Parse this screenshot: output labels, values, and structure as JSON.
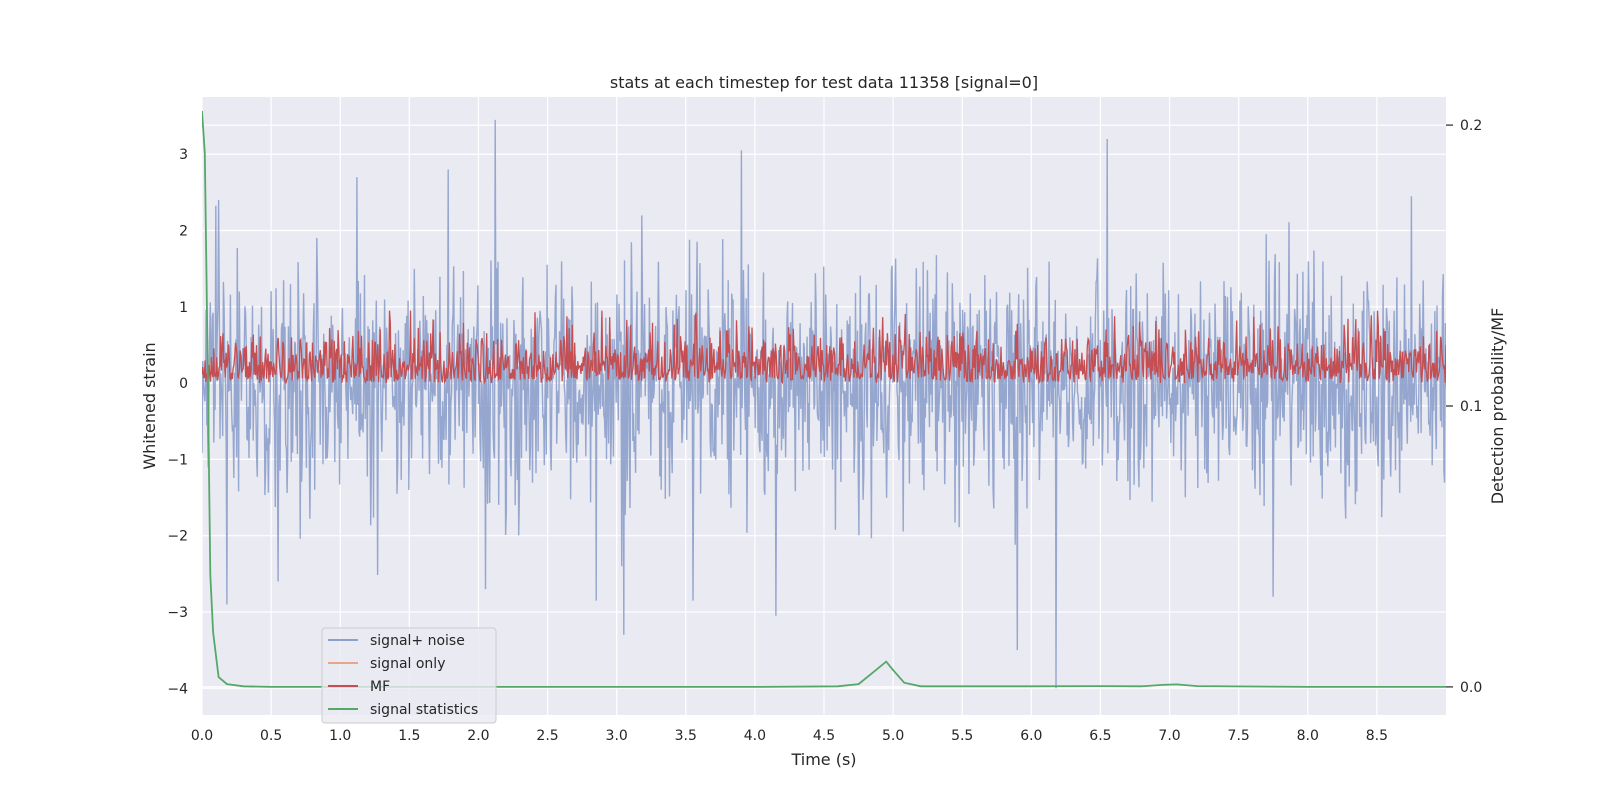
{
  "chart_data": {
    "type": "line",
    "title": "stats at each timestep for test data 11358 [signal=0]",
    "xlabel": "Time (s)",
    "ylabel_left": "Whitened strain",
    "ylabel_right": "Detection probability/MF",
    "xlim": [
      0.0,
      9.0
    ],
    "ylim_left": [
      -4.35,
      3.75
    ],
    "ylim_right": [
      -0.01,
      0.21
    ],
    "x_ticks": [
      "0.0",
      "0.5",
      "1.0",
      "1.5",
      "2.0",
      "2.5",
      "3.0",
      "3.5",
      "4.0",
      "4.5",
      "5.0",
      "5.5",
      "6.0",
      "6.5",
      "7.0",
      "7.5",
      "8.0",
      "8.5"
    ],
    "y_ticks_left": [
      "3",
      "2",
      "1",
      "0",
      "−1",
      "−2",
      "−3",
      "−4"
    ],
    "y_ticks_left_values": [
      3,
      2,
      1,
      0,
      -1,
      -2,
      -3,
      -4
    ],
    "y_ticks_right": [
      "0.2",
      "0.1",
      "0.0"
    ],
    "y_ticks_right_values": [
      0.2,
      0.1,
      0.0
    ],
    "grid": true,
    "legend_position": "lower-left",
    "legend": [
      "signal+ noise",
      "signal only",
      "MF",
      "signal statistics"
    ],
    "series": [
      {
        "name": "signal+ noise",
        "color": "#8da0cb",
        "axis": "left",
        "kind": "noise-envelope",
        "typical_range": [
          -1.6,
          1.6
        ],
        "peaks": [
          {
            "x": 0.12,
            "y": 2.4
          },
          {
            "x": 0.18,
            "y": -2.9
          },
          {
            "x": 0.55,
            "y": -2.6
          },
          {
            "x": 1.12,
            "y": 2.7
          },
          {
            "x": 1.78,
            "y": 2.8
          },
          {
            "x": 2.12,
            "y": 3.45
          },
          {
            "x": 2.05,
            "y": -2.7
          },
          {
            "x": 2.85,
            "y": -2.85
          },
          {
            "x": 3.05,
            "y": -3.3
          },
          {
            "x": 3.55,
            "y": -2.85
          },
          {
            "x": 3.9,
            "y": 3.05
          },
          {
            "x": 4.15,
            "y": -3.05
          },
          {
            "x": 5.9,
            "y": -3.5
          },
          {
            "x": 6.18,
            "y": -4.0
          },
          {
            "x": 6.55,
            "y": 3.2
          },
          {
            "x": 7.75,
            "y": -2.8
          },
          {
            "x": 8.75,
            "y": 2.45
          }
        ]
      },
      {
        "name": "signal only",
        "color": "#e8a587",
        "axis": "left",
        "values": []
      },
      {
        "name": "MF",
        "color": "#c44e52",
        "axis": "left",
        "kind": "noise-band",
        "range": [
          0.0,
          0.95
        ]
      },
      {
        "name": "signal statistics",
        "color": "#55a868",
        "axis": "right",
        "x": [
          0.0,
          0.02,
          0.04,
          0.06,
          0.08,
          0.12,
          0.18,
          0.3,
          0.5,
          1.0,
          2.0,
          3.0,
          4.0,
          4.6,
          4.75,
          4.85,
          4.95,
          5.0,
          5.08,
          5.2,
          6.0,
          6.5,
          6.8,
          6.95,
          7.05,
          7.2,
          8.0,
          9.0
        ],
        "values": [
          0.205,
          0.19,
          0.12,
          0.04,
          0.0195,
          0.0035,
          0.001,
          0.0002,
          0.0,
          0.0,
          0.0,
          0.0,
          0.0,
          0.0002,
          0.001,
          0.005,
          0.009,
          0.006,
          0.0015,
          0.0002,
          0.0002,
          0.0003,
          0.0002,
          0.0007,
          0.0009,
          0.0003,
          0.0,
          0.0
        ]
      }
    ]
  }
}
